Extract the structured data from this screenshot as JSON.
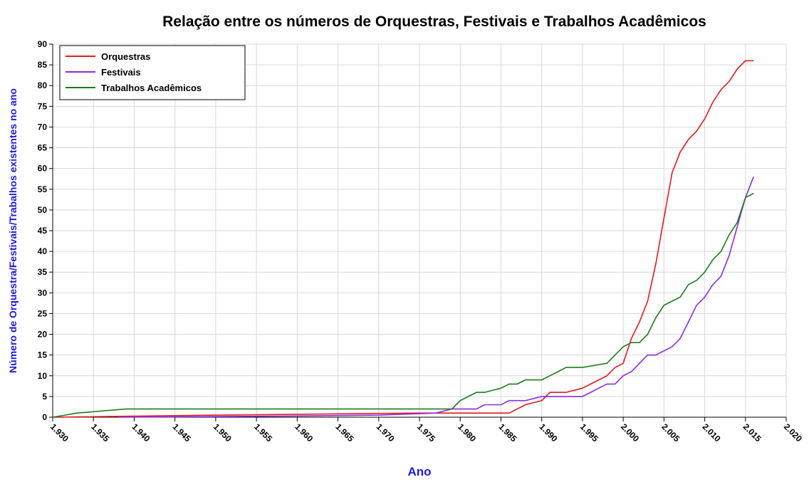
{
  "chart_data": {
    "type": "line",
    "title": "Relação entre os números de Orquestras, Festivais e Trabalhos Acadêmicos",
    "xlabel": "Ano",
    "ylabel": "Número de Orquestra/Festivais/Trabalhos existentes no ano",
    "xlim": [
      1930,
      2020
    ],
    "ylim": [
      0,
      90
    ],
    "xticks": [
      {
        "value": 1930,
        "label": "1.930"
      },
      {
        "value": 1935,
        "label": "1.935"
      },
      {
        "value": 1940,
        "label": "1.940"
      },
      {
        "value": 1945,
        "label": "1.945"
      },
      {
        "value": 1950,
        "label": "1.950"
      },
      {
        "value": 1955,
        "label": "1.955"
      },
      {
        "value": 1960,
        "label": "1.960"
      },
      {
        "value": 1965,
        "label": "1.965"
      },
      {
        "value": 1970,
        "label": "1.970"
      },
      {
        "value": 1975,
        "label": "1.975"
      },
      {
        "value": 1980,
        "label": "1.980"
      },
      {
        "value": 1985,
        "label": "1.985"
      },
      {
        "value": 1990,
        "label": "1.990"
      },
      {
        "value": 1995,
        "label": "1.995"
      },
      {
        "value": 2000,
        "label": "2.000"
      },
      {
        "value": 2005,
        "label": "2.005"
      },
      {
        "value": 2010,
        "label": "2.010"
      },
      {
        "value": 2015,
        "label": "2.015"
      },
      {
        "value": 2020,
        "label": "2.020"
      }
    ],
    "yticks": [
      0,
      5,
      10,
      15,
      20,
      25,
      30,
      35,
      40,
      45,
      50,
      55,
      60,
      65,
      70,
      75,
      80,
      85,
      90
    ],
    "grid": true,
    "legend": "upper left",
    "series": [
      {
        "name": "Orquestras",
        "color": "#e41a1c",
        "x": [
          1930,
          1950,
          1965,
          1975,
          1986,
          1988,
          1989,
          1990,
          1991,
          1993,
          1994,
          1995,
          1996,
          1997,
          1998,
          1999,
          2000,
          2001,
          2002,
          2003,
          2004,
          2005,
          2006,
          2007,
          2008,
          2009,
          2010,
          2011,
          2012,
          2013,
          2014,
          2015,
          2016
        ],
        "values": [
          0,
          0.5,
          0.8,
          1,
          1,
          3,
          3.5,
          4,
          6,
          6,
          6.5,
          7,
          8,
          9,
          10,
          12,
          13,
          19,
          23,
          28,
          37,
          48,
          59,
          64,
          67,
          69,
          72,
          76,
          79,
          81,
          84,
          86,
          86
        ]
      },
      {
        "name": "Festivais",
        "color": "#8a2be2",
        "x": [
          1938,
          1960,
          1970,
          1977,
          1979,
          1982,
          1983,
          1985,
          1986,
          1988,
          1989,
          1990,
          1995,
          1996,
          1997,
          1998,
          1999,
          2000,
          2001,
          2002,
          2003,
          2004,
          2005,
          2006,
          2007,
          2008,
          2009,
          2010,
          2011,
          2012,
          2013,
          2014,
          2015,
          2016
        ],
        "values": [
          0,
          0.3,
          0.5,
          1,
          2,
          2,
          3,
          3,
          4,
          4,
          4.5,
          5,
          5,
          6,
          7,
          8,
          8,
          10,
          11,
          13,
          15,
          15,
          16,
          17,
          19,
          23,
          27,
          29,
          32,
          34,
          39,
          46,
          53,
          58
        ]
      },
      {
        "name": "Trabalhos Acadêmicos",
        "color": "#1a7f1a",
        "x": [
          1930,
          1933,
          1939,
          1979,
          1980,
          1981,
          1982,
          1983,
          1985,
          1986,
          1987,
          1988,
          1990,
          1991,
          1992,
          1993,
          1995,
          1998,
          1999,
          2000,
          2001,
          2002,
          2003,
          2004,
          2005,
          2007,
          2008,
          2009,
          2010,
          2011,
          2012,
          2013,
          2014,
          2015,
          2016
        ],
        "values": [
          0,
          1,
          2,
          2,
          4,
          5,
          6,
          6,
          7,
          8,
          8,
          9,
          9,
          10,
          11,
          12,
          12,
          13,
          15,
          17,
          18,
          18,
          20,
          24,
          27,
          29,
          32,
          33,
          35,
          38,
          40,
          44,
          47,
          53,
          54
        ]
      }
    ]
  }
}
